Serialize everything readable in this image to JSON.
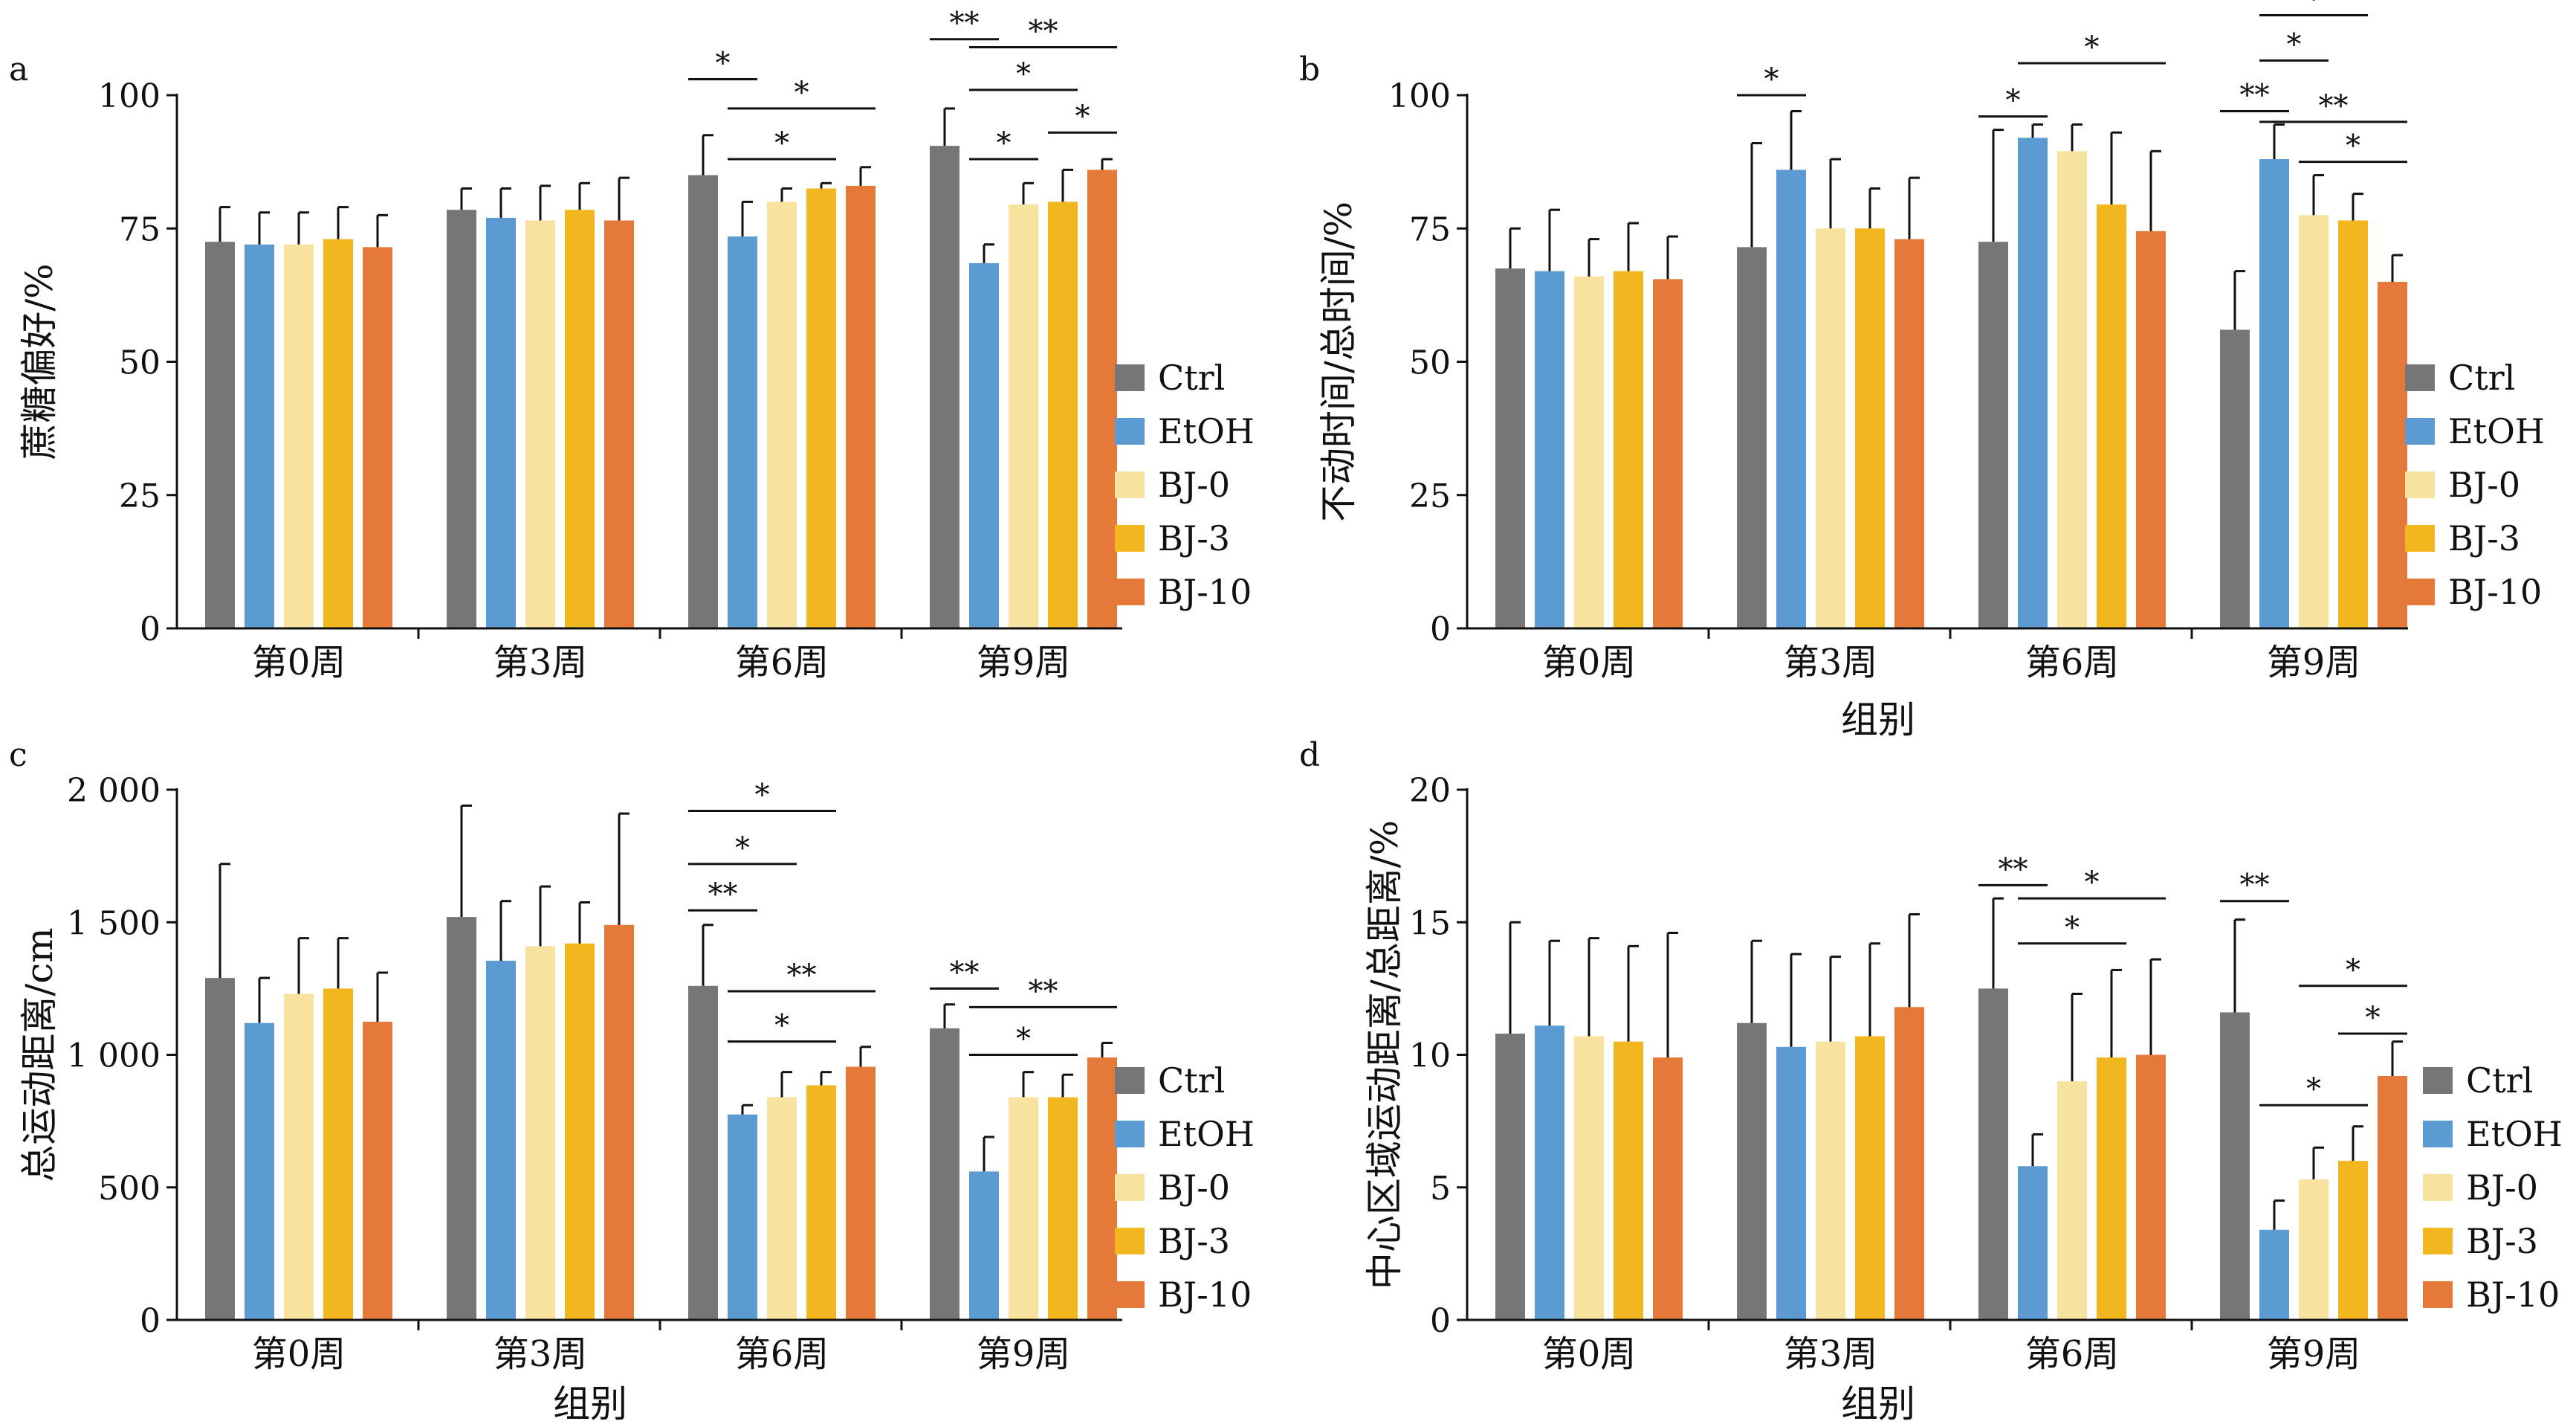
{
  "colors": {
    "Ctrl": "#767676",
    "EtOH": "#5b9bd1",
    "BJ-0": "#f8e29f",
    "BJ-3": "#f2b71e",
    "BJ-10": "#e5793a",
    "axis": "#111111"
  },
  "chart_data": [
    {
      "panel": "a",
      "type": "bar",
      "categories": [
        "第0周",
        "第3周",
        "第6周",
        "第9周"
      ],
      "xlabel": "",
      "ylabel": "蔗糖偏好/%",
      "ylim": [
        0,
        100
      ],
      "yticks": [
        0,
        25,
        50,
        75,
        100
      ],
      "ytick_labels": [
        "0",
        "25",
        "50",
        "75",
        "100"
      ],
      "legend": [
        "Ctrl",
        "EtOH",
        "BJ-0",
        "BJ-3",
        "BJ-10"
      ],
      "legend_position": "right",
      "series": [
        {
          "name": "Ctrl",
          "values": [
            72.5,
            78.5,
            85,
            90.5
          ],
          "errors": [
            6.5,
            4,
            7.5,
            7
          ]
        },
        {
          "name": "EtOH",
          "values": [
            72,
            77,
            73.5,
            68.5
          ],
          "errors": [
            6,
            5.5,
            6.5,
            3.5
          ]
        },
        {
          "name": "BJ-0",
          "values": [
            72,
            76.5,
            80,
            79.5
          ],
          "errors": [
            6,
            6.5,
            2.5,
            4
          ]
        },
        {
          "name": "BJ-3",
          "values": [
            73,
            78.5,
            82.5,
            80
          ],
          "errors": [
            6,
            5,
            1,
            6
          ]
        },
        {
          "name": "BJ-10",
          "values": [
            71.5,
            76.5,
            83,
            86
          ],
          "errors": [
            6,
            8,
            3.5,
            2
          ]
        }
      ],
      "significance": [
        {
          "group": 2,
          "from": 0,
          "to": 1,
          "label": "*",
          "y": 103
        },
        {
          "group": 2,
          "from": 1,
          "to": 4,
          "label": "*",
          "y": 97.5
        },
        {
          "group": 2,
          "from": 1,
          "to": 3,
          "label": "*",
          "y": 88
        },
        {
          "group": 3,
          "from": 0,
          "to": 1,
          "label": "**",
          "y": 110.5
        },
        {
          "group": 3,
          "from": 1,
          "to": 4,
          "label": "**",
          "y": 109
        },
        {
          "group": 3,
          "from": 1,
          "to": 3,
          "label": "*",
          "y": 101
        },
        {
          "group": 3,
          "from": 3,
          "to": 4,
          "label": "*",
          "y": 93
        },
        {
          "group": 3,
          "from": 1,
          "to": 2,
          "label": "*",
          "y": 88
        }
      ]
    },
    {
      "panel": "b",
      "type": "bar",
      "categories": [
        "第0周",
        "第3周",
        "第6周",
        "第9周"
      ],
      "xlabel": "组别",
      "ylabel": "不动时间/总时间/%",
      "ylim": [
        0,
        100
      ],
      "yticks": [
        0,
        25,
        50,
        75,
        100
      ],
      "ytick_labels": [
        "0",
        "25",
        "50",
        "75",
        "100"
      ],
      "legend": [
        "Ctrl",
        "EtOH",
        "BJ-0",
        "BJ-3",
        "BJ-10"
      ],
      "legend_position": "right",
      "series": [
        {
          "name": "Ctrl",
          "values": [
            67.5,
            71.5,
            72.5,
            56
          ],
          "errors": [
            7.5,
            19.5,
            21,
            11
          ]
        },
        {
          "name": "EtOH",
          "values": [
            67,
            86,
            92,
            88
          ],
          "errors": [
            11.5,
            11,
            2.5,
            6.5
          ]
        },
        {
          "name": "BJ-0",
          "values": [
            66,
            75,
            89.5,
            77.5
          ],
          "errors": [
            7,
            13,
            5,
            7.5
          ]
        },
        {
          "name": "BJ-3",
          "values": [
            67,
            75,
            79.5,
            76.5
          ],
          "errors": [
            9,
            7.5,
            13.5,
            5
          ]
        },
        {
          "name": "BJ-10",
          "values": [
            65.5,
            73,
            74.5,
            65
          ],
          "errors": [
            8,
            11.5,
            15,
            5
          ]
        }
      ],
      "significance": [
        {
          "group": 1,
          "from": 0,
          "to": 1,
          "label": "*",
          "y": 100
        },
        {
          "group": 2,
          "from": 0,
          "to": 1,
          "label": "*",
          "y": 96
        },
        {
          "group": 2,
          "from": 1,
          "to": 4,
          "label": "*",
          "y": 106
        },
        {
          "group": 3,
          "from": 1,
          "to": 3,
          "label": "*",
          "y": 115
        },
        {
          "group": 3,
          "from": 1,
          "to": 2,
          "label": "*",
          "y": 106.5
        },
        {
          "group": 3,
          "from": 0,
          "to": 1,
          "label": "**",
          "y": 97
        },
        {
          "group": 3,
          "from": 1,
          "to": 4,
          "label": "**",
          "y": 95
        },
        {
          "group": 3,
          "from": 2,
          "to": 4,
          "label": "*",
          "y": 87.5
        }
      ]
    },
    {
      "panel": "c",
      "type": "bar",
      "categories": [
        "第0周",
        "第3周",
        "第6周",
        "第9周"
      ],
      "xlabel": "组别",
      "ylabel": "总运动距离/cm",
      "ylim": [
        0,
        2000
      ],
      "yticks": [
        0,
        500,
        1000,
        1500,
        2000
      ],
      "ytick_labels": [
        "0",
        "500",
        "1 000",
        "1 500",
        "2 000"
      ],
      "legend": [
        "Ctrl",
        "EtOH",
        "BJ-0",
        "BJ-3",
        "BJ-10"
      ],
      "legend_position": "right",
      "series": [
        {
          "name": "Ctrl",
          "values": [
            1290,
            1520,
            1260,
            1100
          ],
          "errors": [
            430,
            420,
            230,
            90
          ]
        },
        {
          "name": "EtOH",
          "values": [
            1120,
            1355,
            775,
            560
          ],
          "errors": [
            170,
            225,
            35,
            130
          ]
        },
        {
          "name": "BJ-0",
          "values": [
            1230,
            1410,
            840,
            840
          ],
          "errors": [
            210,
            225,
            95,
            95
          ]
        },
        {
          "name": "BJ-3",
          "values": [
            1250,
            1420,
            885,
            840
          ],
          "errors": [
            190,
            155,
            50,
            85
          ]
        },
        {
          "name": "BJ-10",
          "values": [
            1125,
            1490,
            955,
            990
          ],
          "errors": [
            185,
            420,
            75,
            55
          ]
        }
      ],
      "significance": [
        {
          "group": 2,
          "from": 0,
          "to": 3,
          "label": "*",
          "y": 1920
        },
        {
          "group": 2,
          "from": 0,
          "to": 2,
          "label": "*",
          "y": 1720
        },
        {
          "group": 2,
          "from": 0,
          "to": 1,
          "label": "**",
          "y": 1545
        },
        {
          "group": 2,
          "from": 1,
          "to": 4,
          "label": "**",
          "y": 1240
        },
        {
          "group": 2,
          "from": 1,
          "to": 3,
          "label": "*",
          "y": 1050
        },
        {
          "group": 3,
          "from": 0,
          "to": 1,
          "label": "**",
          "y": 1250
        },
        {
          "group": 3,
          "from": 1,
          "to": 4,
          "label": "**",
          "y": 1180
        },
        {
          "group": 3,
          "from": 1,
          "to": 3,
          "label": "*",
          "y": 1000
        }
      ]
    },
    {
      "panel": "d",
      "type": "bar",
      "categories": [
        "第0周",
        "第3周",
        "第6周",
        "第9周"
      ],
      "xlabel": "组别",
      "ylabel": "中心区域运动距离/总距离/%",
      "ylim": [
        0,
        20
      ],
      "yticks": [
        0,
        5,
        10,
        15,
        20
      ],
      "ytick_labels": [
        "0",
        "5",
        "10",
        "15",
        "20"
      ],
      "legend": [
        "Ctrl",
        "EtOH",
        "BJ-0",
        "BJ-3",
        "BJ-10"
      ],
      "legend_position": "right",
      "series": [
        {
          "name": "Ctrl",
          "values": [
            10.8,
            11.2,
            12.5,
            11.6
          ],
          "errors": [
            4.2,
            3.1,
            3.4,
            3.5
          ]
        },
        {
          "name": "EtOH",
          "values": [
            11.1,
            10.3,
            5.8,
            3.4
          ],
          "errors": [
            3.2,
            3.5,
            1.2,
            1.1
          ]
        },
        {
          "name": "BJ-0",
          "values": [
            10.7,
            10.5,
            9,
            5.3
          ],
          "errors": [
            3.7,
            3.2,
            3.3,
            1.2
          ]
        },
        {
          "name": "BJ-3",
          "values": [
            10.5,
            10.7,
            9.9,
            6
          ],
          "errors": [
            3.6,
            3.5,
            3.3,
            1.3
          ]
        },
        {
          "name": "BJ-10",
          "values": [
            9.9,
            11.8,
            10,
            9.2
          ],
          "errors": [
            4.7,
            3.5,
            3.6,
            1.3
          ]
        }
      ],
      "significance": [
        {
          "group": 2,
          "from": 0,
          "to": 1,
          "label": "**",
          "y": 16.4
        },
        {
          "group": 2,
          "from": 1,
          "to": 4,
          "label": "*",
          "y": 15.9
        },
        {
          "group": 2,
          "from": 1,
          "to": 3,
          "label": "*",
          "y": 14.2
        },
        {
          "group": 3,
          "from": 0,
          "to": 1,
          "label": "**",
          "y": 15.8
        },
        {
          "group": 3,
          "from": 2,
          "to": 4,
          "label": "*",
          "y": 12.6
        },
        {
          "group": 3,
          "from": 3,
          "to": 4,
          "label": "*",
          "y": 10.8
        },
        {
          "group": 3,
          "from": 1,
          "to": 3,
          "label": "*",
          "y": 8.1
        }
      ]
    }
  ]
}
